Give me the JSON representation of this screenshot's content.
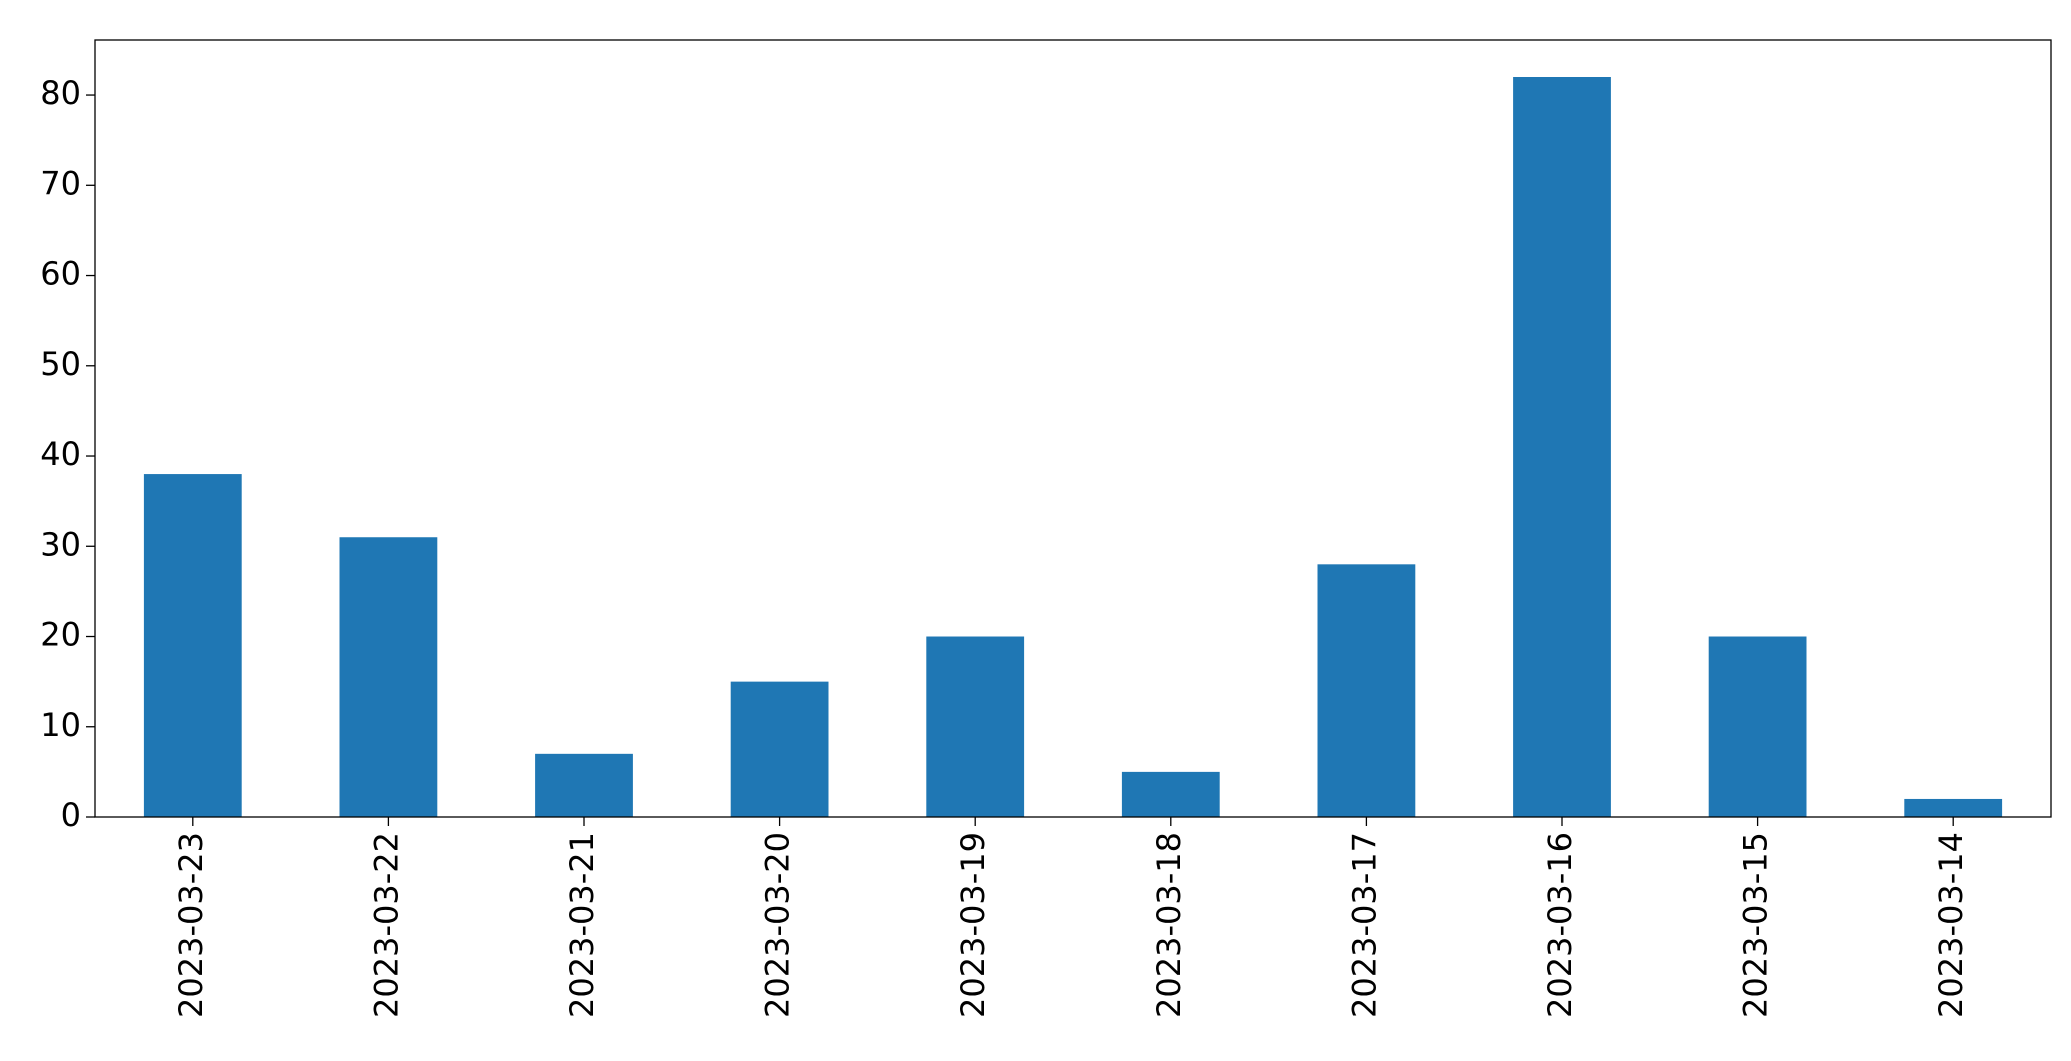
{
  "chart_data": {
    "type": "bar",
    "categories": [
      "2023-03-23",
      "2023-03-22",
      "2023-03-21",
      "2023-03-20",
      "2023-03-19",
      "2023-03-18",
      "2023-03-17",
      "2023-03-16",
      "2023-03-15",
      "2023-03-14"
    ],
    "values": [
      38,
      31,
      7,
      15,
      20,
      5,
      28,
      82,
      20,
      2
    ],
    "color": "#1f77b4",
    "ylim": [
      0,
      86.1
    ],
    "yticks": [
      0,
      10,
      20,
      30,
      40,
      50,
      60,
      70,
      80
    ],
    "grid": false
  }
}
